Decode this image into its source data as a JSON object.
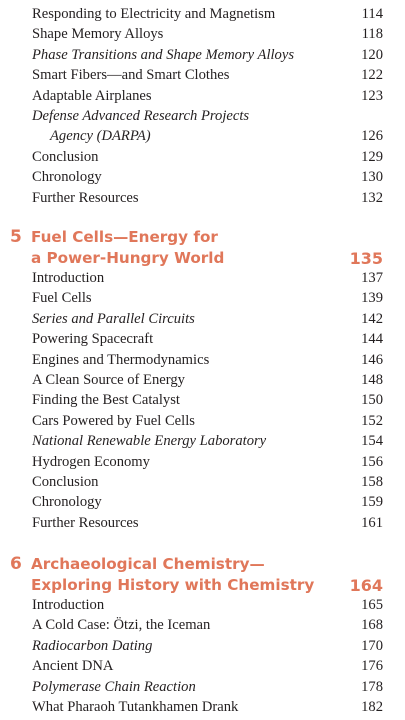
{
  "section_top": [
    {
      "title": "Responding to Electricity and Magnetism",
      "page": "114",
      "italic": false,
      "indent": false
    },
    {
      "title": "Shape Memory Alloys",
      "page": "118",
      "italic": false,
      "indent": false
    },
    {
      "title": "Phase Transitions and Shape Memory Alloys",
      "page": "120",
      "italic": true,
      "indent": false
    },
    {
      "title": "Smart Fibers—and Smart Clothes",
      "page": "122",
      "italic": false,
      "indent": false
    },
    {
      "title": "Adaptable Airplanes",
      "page": "123",
      "italic": false,
      "indent": false
    },
    {
      "title": "Defense Advanced Research Projects",
      "page": "",
      "italic": true,
      "indent": false
    },
    {
      "title": "Agency (DARPA)",
      "page": "126",
      "italic": true,
      "indent": true
    },
    {
      "title": "Conclusion",
      "page": "129",
      "italic": false,
      "indent": false
    },
    {
      "title": "Chronology",
      "page": "130",
      "italic": false,
      "indent": false
    },
    {
      "title": "Further Resources",
      "page": "132",
      "italic": false,
      "indent": false
    }
  ],
  "chapter5": {
    "number": "5",
    "title_line1": "Fuel Cells—Energy for",
    "title_line2": "a Power-Hungry World",
    "page": "135",
    "entries": [
      {
        "title": "Introduction",
        "page": "137",
        "italic": false
      },
      {
        "title": "Fuel Cells",
        "page": "139",
        "italic": false
      },
      {
        "title": "Series and Parallel Circuits",
        "page": "142",
        "italic": true
      },
      {
        "title": "Powering Spacecraft",
        "page": "144",
        "italic": false
      },
      {
        "title": "Engines and Thermodynamics",
        "page": "146",
        "italic": false
      },
      {
        "title": "A Clean Source of Energy",
        "page": "148",
        "italic": false
      },
      {
        "title": "Finding the Best Catalyst",
        "page": "150",
        "italic": false
      },
      {
        "title": "Cars Powered by Fuel Cells",
        "page": "152",
        "italic": false
      },
      {
        "title": "National Renewable Energy Laboratory",
        "page": "154",
        "italic": true
      },
      {
        "title": "Hydrogen Economy",
        "page": "156",
        "italic": false
      },
      {
        "title": "Conclusion",
        "page": "158",
        "italic": false
      },
      {
        "title": "Chronology",
        "page": "159",
        "italic": false
      },
      {
        "title": "Further Resources",
        "page": "161",
        "italic": false
      }
    ]
  },
  "chapter6": {
    "number": "6",
    "title_line1": "Archaeological Chemistry—",
    "title_line2": "Exploring History with Chemistry",
    "page": "164",
    "entries": [
      {
        "title": "Introduction",
        "page": "165",
        "italic": false
      },
      {
        "title": "A Cold Case: Ötzi, the Iceman",
        "page": "168",
        "italic": false
      },
      {
        "title": "Radiocarbon Dating",
        "page": "170",
        "italic": true
      },
      {
        "title": "Ancient DNA",
        "page": "176",
        "italic": false
      },
      {
        "title": "Polymerase Chain Reaction",
        "page": "178",
        "italic": true
      },
      {
        "title": "What Pharaoh Tutankhamen Drank",
        "page": "182",
        "italic": false
      }
    ]
  },
  "colors": {
    "chapter_heading": "#e0775a",
    "body_text": "#231f20"
  }
}
